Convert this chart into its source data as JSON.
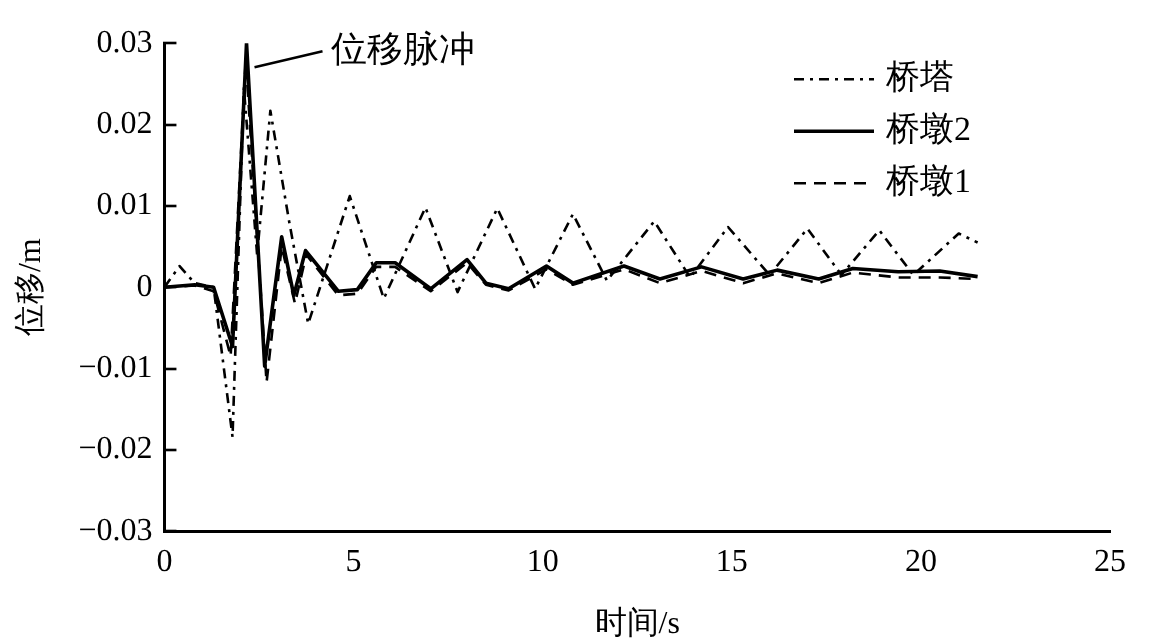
{
  "chart_data": {
    "type": "line",
    "xlabel": "时间/s",
    "ylabel": "位移/m",
    "xlim": [
      0,
      25
    ],
    "xticks": [
      0,
      5,
      10,
      15,
      20,
      25
    ],
    "ylim": [
      -0.03,
      0.03
    ],
    "yticks": [
      {
        "value": -0.03,
        "label": "−0.03"
      },
      {
        "value": -0.02,
        "label": "−0.02"
      },
      {
        "value": -0.01,
        "label": "−0.01"
      },
      0,
      0.01,
      0.02,
      0.03
    ],
    "grid": false,
    "legend": "top right",
    "marker": "none",
    "annotations": [
      {
        "text": "位移脉冲",
        "x": 2.17,
        "y": 0.03
      }
    ],
    "series": [
      {
        "name": "桥塔",
        "color": "#000000",
        "line_style": "dotted",
        "x": [
          0,
          0.4,
          0.8,
          1.3,
          1.8,
          2.1,
          2.45,
          2.8,
          3.3,
          3.8,
          4.9,
          5.8,
          6.9,
          7.75,
          8.8,
          9.8,
          10.8,
          11.7,
          12.95,
          13.9,
          14.9,
          16,
          17,
          17.9,
          18.9,
          19.8,
          21,
          21.5
        ],
        "values": [
          0,
          0.0026,
          0.0005,
          0,
          -0.0184,
          0.0245,
          0.004,
          0.0217,
          0.008,
          -0.0045,
          0.0112,
          -0.0014,
          0.0098,
          -0.0006,
          0.0097,
          -0.0002,
          0.009,
          0.0008,
          0.0081,
          0.0012,
          0.0074,
          0.0015,
          0.0072,
          0.0015,
          0.007,
          0.0015,
          0.0066,
          0.0055
        ]
      },
      {
        "name": "桥墩2",
        "color": "#000000",
        "line_style": "solid",
        "x": [
          0,
          0.8,
          1.3,
          1.8,
          2.17,
          2.65,
          3.1,
          3.42,
          3.73,
          4.6,
          5.1,
          5.6,
          6.1,
          7.04,
          8.0,
          8.5,
          9.1,
          10.1,
          10.8,
          12.15,
          13.1,
          14.2,
          15.3,
          16.2,
          17.3,
          18.2,
          19.4,
          20.5,
          21.5
        ],
        "values": [
          0,
          0.0003,
          0,
          -0.0073,
          0.03,
          -0.0097,
          0.0062,
          -0.001,
          0.0045,
          -0.0005,
          -0.0003,
          0.003,
          0.003,
          -0.0002,
          0.0034,
          0.0005,
          -0.0002,
          0.0026,
          0.0005,
          0.0026,
          0.001,
          0.0025,
          0.001,
          0.0021,
          0.001,
          0.0023,
          0.0019,
          0.002,
          0.0013
        ]
      },
      {
        "name": "桥墩1",
        "color": "#000000",
        "line_style": "dashed",
        "x": [
          0,
          0.8,
          1.3,
          1.75,
          2.15,
          2.7,
          3.1,
          3.45,
          3.75,
          4.6,
          5.1,
          5.6,
          6.1,
          7.04,
          8.0,
          8.5,
          9.1,
          10.1,
          10.8,
          12.15,
          13.1,
          14.2,
          15.3,
          16.2,
          17.3,
          18.2,
          19.4,
          20.5,
          21.5
        ],
        "values": [
          0,
          0.0002,
          -0.0005,
          -0.0085,
          0.028,
          -0.0117,
          0.005,
          -0.002,
          0.004,
          -0.001,
          -0.0008,
          0.0025,
          0.0025,
          -0.0005,
          0.003,
          0.0003,
          -0.0004,
          0.0022,
          0.0003,
          0.0022,
          0.0005,
          0.002,
          0.0005,
          0.0017,
          0.0005,
          0.0018,
          0.0012,
          0.0012,
          0.001
        ]
      }
    ]
  }
}
